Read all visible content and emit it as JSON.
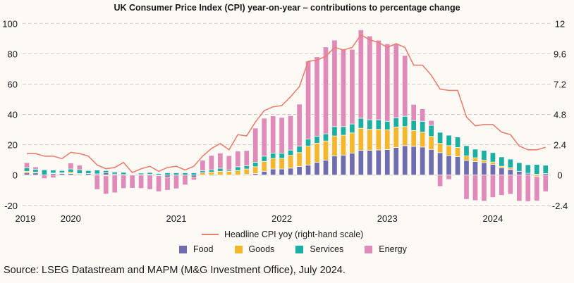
{
  "chart_data": {
    "type": "bar",
    "stacked": true,
    "title": "UK Consumer Price Index (CPI) year-on-year – contributions to percentage change",
    "x": [
      "2019-08",
      "2019-09",
      "2019-10",
      "2019-11",
      "2019-12",
      "2020-01",
      "2020-02",
      "2020-03",
      "2020-04",
      "2020-05",
      "2020-06",
      "2020-07",
      "2020-08",
      "2020-09",
      "2020-10",
      "2020-11",
      "2020-12",
      "2021-01",
      "2021-02",
      "2021-03",
      "2021-04",
      "2021-05",
      "2021-06",
      "2021-07",
      "2021-08",
      "2021-09",
      "2021-10",
      "2021-11",
      "2021-12",
      "2022-01",
      "2022-02",
      "2022-03",
      "2022-04",
      "2022-05",
      "2022-06",
      "2022-07",
      "2022-08",
      "2022-09",
      "2022-10",
      "2022-11",
      "2022-12",
      "2023-01",
      "2023-02",
      "2023-03",
      "2023-04",
      "2023-05",
      "2023-06",
      "2023-07",
      "2023-08",
      "2023-09",
      "2023-10",
      "2023-11",
      "2023-12",
      "2024-01",
      "2024-02",
      "2024-03",
      "2024-04",
      "2024-05",
      "2024-06",
      "2024-07"
    ],
    "xticks": [
      "2019",
      "2020",
      "2021",
      "2022",
      "2023",
      "2024"
    ],
    "left_axis": {
      "ticks": [
        "100",
        "80",
        "60",
        "40",
        "20",
        "0",
        "-20"
      ],
      "ylim": [
        -20,
        100
      ]
    },
    "right_axis": {
      "ticks": [
        "12",
        "9.6",
        "7.2",
        "4.8",
        "2.4",
        "0",
        "-2.4"
      ],
      "ylim": [
        -2.4,
        12
      ]
    },
    "grid": true,
    "series": [
      {
        "name": "Food",
        "color": "#6e6db0",
        "axis": "left",
        "values": [
          1.4,
          1.4,
          0,
          1,
          1,
          1,
          0.5,
          1,
          0.8,
          1.5,
          0.7,
          0.3,
          0,
          0.3,
          0.5,
          0,
          -1.3,
          0,
          0,
          -1.3,
          0,
          -0.5,
          0,
          0,
          0,
          0.5,
          1,
          2.5,
          4,
          4,
          4.6,
          5.7,
          6.6,
          8.5,
          9.8,
          12.6,
          13.2,
          14.5,
          16.3,
          16.3,
          16.6,
          16.8,
          18.2,
          19.4,
          18.9,
          18.5,
          16.9,
          14.8,
          12.9,
          12.2,
          9.7,
          8.9,
          8.2,
          7.1,
          4.8,
          3.7,
          2.5,
          1.2,
          0.5,
          1
        ]
      },
      {
        "name": "Goods",
        "color": "#f4b72c",
        "axis": "left",
        "values": [
          1.1,
          0.5,
          0,
          0.3,
          0.5,
          1,
          0.5,
          0,
          0,
          -0.5,
          0,
          0,
          0,
          0,
          0,
          -0.4,
          0,
          0,
          0,
          0,
          1.5,
          2,
          2.5,
          2.5,
          3,
          3.5,
          4.5,
          6.5,
          7,
          7,
          8.4,
          9.1,
          12.5,
          12.5,
          12.7,
          13.2,
          13.1,
          13.3,
          14.6,
          13.9,
          13.6,
          13,
          13.5,
          12.6,
          10.5,
          9.8,
          8.6,
          6.1,
          6.5,
          6,
          2.9,
          2.5,
          1.6,
          1.5,
          1,
          1.1,
          0,
          0,
          -1,
          0
        ]
      },
      {
        "name": "Services",
        "color": "#1aafa3",
        "axis": "left",
        "values": [
          2.3,
          2,
          3.5,
          2,
          1.5,
          2,
          2.5,
          2,
          2.5,
          1.5,
          1.3,
          1.5,
          0,
          1,
          1.2,
          1,
          1.5,
          1.5,
          1.5,
          1.5,
          1.3,
          1.5,
          2,
          0.8,
          2.5,
          2.2,
          3,
          3.5,
          3.5,
          3.5,
          3.5,
          4.4,
          4.7,
          4.7,
          4.7,
          6.2,
          5.7,
          5.9,
          6.6,
          6.3,
          6.3,
          5.7,
          6.1,
          6.8,
          6.6,
          7.2,
          7.3,
          7.3,
          6.9,
          6.9,
          6.8,
          5.7,
          6.5,
          6.2,
          6.2,
          5.7,
          5.7,
          5.6,
          6.5,
          5.5
        ]
      },
      {
        "name": "Energy",
        "color": "#e08ab9",
        "axis": "left",
        "values": [
          3.4,
          1.5,
          -2.3,
          -1.8,
          0,
          4,
          3,
          0.5,
          -9.5,
          -12,
          -11.7,
          -8.8,
          -8.7,
          -8.8,
          -9.5,
          -10.5,
          -8.7,
          -9,
          -6.5,
          -2,
          7,
          9.5,
          10,
          9.5,
          10.3,
          10,
          22.5,
          25,
          24.5,
          23.5,
          22.7,
          27.6,
          51.4,
          52.3,
          57.3,
          57,
          51.2,
          49.2,
          58.3,
          55.2,
          52.4,
          51.1,
          48.8,
          40.1,
          10.6,
          8.2,
          3.2,
          -7.5,
          -2.9,
          0,
          -16,
          -16.8,
          -17.2,
          -14.8,
          -13.4,
          -12.6,
          -17.2,
          -17.4,
          -16,
          -10.9
        ]
      },
      {
        "name": "Headline CPI yoy (right-hand scale)",
        "color": "#e8806e",
        "axis": "right",
        "type": "line",
        "values": [
          1.7,
          1.7,
          1.5,
          1.5,
          1.3,
          1.8,
          1.7,
          1.5,
          0.8,
          0.5,
          0.6,
          1.0,
          0.2,
          0.5,
          0.7,
          0.3,
          0.6,
          0.7,
          0.4,
          0.7,
          1.5,
          2.1,
          2.5,
          2.0,
          3.2,
          3.1,
          4.2,
          5.1,
          5.4,
          5.5,
          6.2,
          7.0,
          9.0,
          9.1,
          9.4,
          10.1,
          9.9,
          10.1,
          11.1,
          10.7,
          10.5,
          10.1,
          10.4,
          10.1,
          8.7,
          8.7,
          7.9,
          6.8,
          6.7,
          6.7,
          4.6,
          3.9,
          4.0,
          4.0,
          3.4,
          3.2,
          2.3,
          2.0,
          2.0,
          2.2
        ]
      }
    ],
    "legend": {
      "placement": "bottom",
      "line_label": "Headline CPI yoy (right-hand scale)",
      "items": [
        "Food",
        "Goods",
        "Services",
        "Energy"
      ]
    },
    "source": "Source: LSEG Datastream and MAPM (M&G Investment Office), July 2024."
  }
}
